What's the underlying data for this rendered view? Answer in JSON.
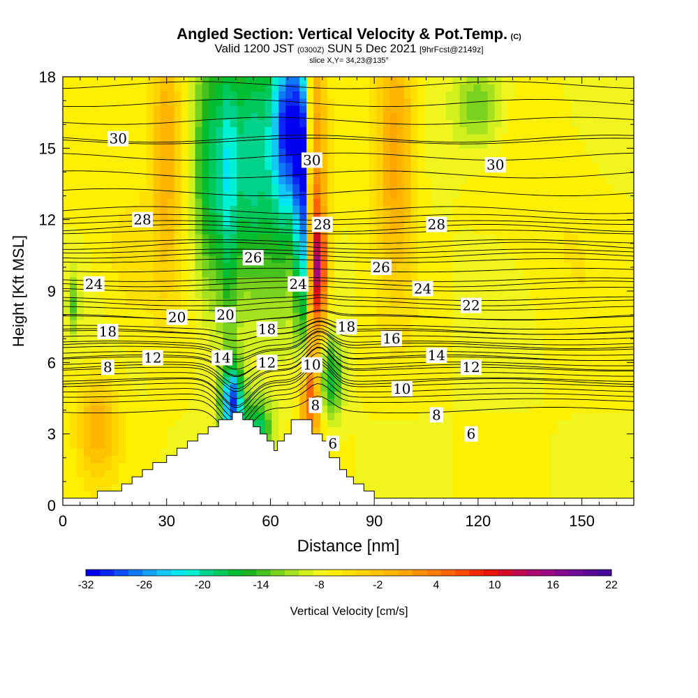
{
  "header": {
    "title": "Angled Section: Vertical Velocity & Pot.Temp.",
    "title_tag": "(C)",
    "valid_prefix": "Valid 1200 JST",
    "valid_z": "(0300Z)",
    "valid_date": "SUN 5 Dec 2021",
    "valid_fcst": "[9hrFcst@2149z]",
    "slice": "slice X,Y= 34,23@135°"
  },
  "chart_data": {
    "type": "heatmap",
    "title": "Angled Section: Vertical Velocity & Pot.Temp.",
    "xlabel": "Distance [nm]",
    "ylabel": "Height [Kft MSL]",
    "xlim": [
      0,
      165
    ],
    "ylim": [
      0,
      18
    ],
    "x_ticks": [
      0,
      30,
      60,
      90,
      120,
      150
    ],
    "y_ticks": [
      0,
      3,
      6,
      9,
      12,
      15,
      18
    ],
    "x_minor_step": 5,
    "y_minor_step": 1,
    "field": "Vertical Velocity [cm/s]",
    "background_value": 2,
    "velocity_features": [
      {
        "x": 10,
        "y": 3.3,
        "value": 12,
        "wx": 4,
        "wy": 1.4
      },
      {
        "x": 30,
        "y": 15,
        "value": 12,
        "wx": 3,
        "wy": 4
      },
      {
        "x": 43,
        "y": 14,
        "value": -12,
        "wx": 3.5,
        "wy": 4
      },
      {
        "x": 48,
        "y": 13,
        "value": -8,
        "wx": 2,
        "wy": 5
      },
      {
        "x": 54,
        "y": 14.5,
        "value": -14,
        "wx": 4,
        "wy": 4
      },
      {
        "x": 63,
        "y": 15,
        "value": -14,
        "wx": 4,
        "wy": 4
      },
      {
        "x": 66,
        "y": 16,
        "value": -20,
        "wx": 3,
        "wy": 2.5
      },
      {
        "x": 69,
        "y": 13,
        "value": -26,
        "wx": 1.2,
        "wy": 4
      },
      {
        "x": 73,
        "y": 12,
        "value": 16,
        "wx": 2.2,
        "wy": 6
      },
      {
        "x": 74,
        "y": 10,
        "value": 20,
        "wx": 1.5,
        "wy": 1.5
      },
      {
        "x": 49,
        "y": 4.3,
        "value": -26,
        "wx": 2.2,
        "wy": 1.1
      },
      {
        "x": 56,
        "y": 3.2,
        "value": -14,
        "wx": 3,
        "wy": 0.9
      },
      {
        "x": 71,
        "y": 4.5,
        "value": 16,
        "wx": 2,
        "wy": 1.2
      },
      {
        "x": 77,
        "y": 5.3,
        "value": -12,
        "wx": 2.5,
        "wy": 1.2
      },
      {
        "x": 96,
        "y": 15,
        "value": 14,
        "wx": 4,
        "wy": 4
      },
      {
        "x": 120,
        "y": 16.8,
        "value": -6,
        "wx": 5,
        "wy": 1.3
      },
      {
        "x": 3,
        "y": 8.5,
        "value": -6,
        "wx": 1.2,
        "wy": 1
      },
      {
        "x": 145,
        "y": 12,
        "value": 4,
        "wx": 10,
        "wy": 3
      },
      {
        "x": 20,
        "y": 10,
        "value": 6,
        "wx": 6,
        "wy": 2
      }
    ],
    "terrain": [
      [
        0,
        0.3
      ],
      [
        10,
        0.3
      ],
      [
        10,
        0.6
      ],
      [
        14,
        0.6
      ],
      [
        17,
        0.6
      ],
      [
        17,
        0.9
      ],
      [
        20,
        0.9
      ],
      [
        20,
        1.2
      ],
      [
        23,
        1.2
      ],
      [
        23,
        1.5
      ],
      [
        26,
        1.5
      ],
      [
        26,
        1.8
      ],
      [
        30,
        1.8
      ],
      [
        30,
        2.1
      ],
      [
        33,
        2.1
      ],
      [
        33,
        2.4
      ],
      [
        36,
        2.4
      ],
      [
        36,
        2.7
      ],
      [
        39,
        2.7
      ],
      [
        39,
        3.0
      ],
      [
        42,
        3.0
      ],
      [
        42,
        3.3
      ],
      [
        45,
        3.3
      ],
      [
        45,
        3.6
      ],
      [
        49,
        3.6
      ],
      [
        49,
        3.9
      ],
      [
        52,
        3.9
      ],
      [
        52,
        3.6
      ],
      [
        55,
        3.6
      ],
      [
        55,
        3.3
      ],
      [
        57,
        3.3
      ],
      [
        57,
        3.0
      ],
      [
        59,
        3.0
      ],
      [
        59,
        2.7
      ],
      [
        61,
        2.7
      ],
      [
        61,
        2.3
      ],
      [
        62,
        2.3
      ],
      [
        62,
        2.7
      ],
      [
        64,
        2.7
      ],
      [
        64,
        3.0
      ],
      [
        66,
        3.0
      ],
      [
        66,
        3.6
      ],
      [
        72,
        3.6
      ],
      [
        72,
        3.0
      ],
      [
        75,
        3.0
      ],
      [
        75,
        2.7
      ],
      [
        77,
        2.7
      ],
      [
        77,
        2.0
      ],
      [
        80,
        2.0
      ],
      [
        80,
        1.5
      ],
      [
        82,
        1.5
      ],
      [
        82,
        1.2
      ],
      [
        84,
        1.2
      ],
      [
        84,
        0.9
      ],
      [
        87,
        0.9
      ],
      [
        87,
        0.6
      ],
      [
        90,
        0.6
      ],
      [
        90,
        0.3
      ],
      [
        165,
        0.3
      ]
    ],
    "theta_contours": [
      {
        "values": [
          8
        ],
        "y": 5.2
      },
      {
        "values": [
          10
        ],
        "y": 4.0
      },
      {
        "values": [
          12
        ],
        "y": 5.8
      },
      {
        "values": [
          14
        ],
        "y": 6.2
      },
      {
        "values": [
          16
        ],
        "y": 6.7
      },
      {
        "values": [
          18
        ],
        "y": 7.3
      },
      {
        "values": [
          20
        ],
        "y": 7.9
      },
      {
        "values": [
          22
        ],
        "y": 8.5
      },
      {
        "values": [
          24
        ],
        "y": 9.3
      },
      {
        "values": [
          26
        ],
        "y": 10.5
      },
      {
        "values": [
          28
        ],
        "y": 12.1
      },
      {
        "values": [
          30
        ],
        "y": 15.3
      }
    ],
    "contour_labels": [
      {
        "text": "30",
        "x": 16,
        "y": 15.4
      },
      {
        "text": "30",
        "x": 72,
        "y": 14.5
      },
      {
        "text": "30",
        "x": 125,
        "y": 14.3
      },
      {
        "text": "28",
        "x": 23,
        "y": 12.0
      },
      {
        "text": "28",
        "x": 75,
        "y": 11.8
      },
      {
        "text": "28",
        "x": 108,
        "y": 11.8
      },
      {
        "text": "26",
        "x": 55,
        "y": 10.4
      },
      {
        "text": "26",
        "x": 92,
        "y": 10.0
      },
      {
        "text": "24",
        "x": 9,
        "y": 9.3
      },
      {
        "text": "24",
        "x": 68,
        "y": 9.3
      },
      {
        "text": "24",
        "x": 104,
        "y": 9.1
      },
      {
        "text": "22",
        "x": 118,
        "y": 8.4
      },
      {
        "text": "20",
        "x": 33,
        "y": 7.9
      },
      {
        "text": "20",
        "x": 47,
        "y": 8.0
      },
      {
        "text": "18",
        "x": 13,
        "y": 7.3
      },
      {
        "text": "18",
        "x": 59,
        "y": 7.4
      },
      {
        "text": "18",
        "x": 82,
        "y": 7.5
      },
      {
        "text": "16",
        "x": 95,
        "y": 7.0
      },
      {
        "text": "14",
        "x": 46,
        "y": 6.2
      },
      {
        "text": "14",
        "x": 108,
        "y": 6.3
      },
      {
        "text": "12",
        "x": 26,
        "y": 6.2
      },
      {
        "text": "12",
        "x": 59,
        "y": 6.0
      },
      {
        "text": "12",
        "x": 118,
        "y": 5.8
      },
      {
        "text": "10",
        "x": 72,
        "y": 5.9
      },
      {
        "text": "10",
        "x": 98,
        "y": 4.9
      },
      {
        "text": "8",
        "x": 13,
        "y": 5.8
      },
      {
        "text": "8",
        "x": 73,
        "y": 4.2
      },
      {
        "text": "8",
        "x": 108,
        "y": 3.8
      },
      {
        "text": "6",
        "x": 78,
        "y": 2.6
      },
      {
        "text": "6",
        "x": 118,
        "y": 3.0
      }
    ]
  },
  "colorbar": {
    "label": "Vertical Velocity [cm/s]",
    "tick_labels": [
      "-32",
      "-26",
      "-20",
      "-14",
      "-8",
      "-2",
      "4",
      "10",
      "16",
      "22"
    ],
    "min": -32,
    "max": 22,
    "step": 2,
    "colors": [
      "#0000f0",
      "#0a28f5",
      "#0f50f5",
      "#0f78f5",
      "#14a0f5",
      "#14c8f5",
      "#00e6f0",
      "#00f0d2",
      "#00d28c",
      "#00c85a",
      "#00be32",
      "#1eb41e",
      "#46c31e",
      "#78d21e",
      "#a5e11e",
      "#d2f01e",
      "#f0f51e",
      "#fff000",
      "#ffe100",
      "#ffd200",
      "#ffc300",
      "#ffb400",
      "#ffa500",
      "#ff9100",
      "#ff7d00",
      "#ff6400",
      "#ff4b00",
      "#f02800",
      "#e61400",
      "#d20a28",
      "#be0a50",
      "#aa0a6e",
      "#960a82",
      "#820a8c",
      "#6e0a96",
      "#5a0a96",
      "#460a96"
    ]
  }
}
